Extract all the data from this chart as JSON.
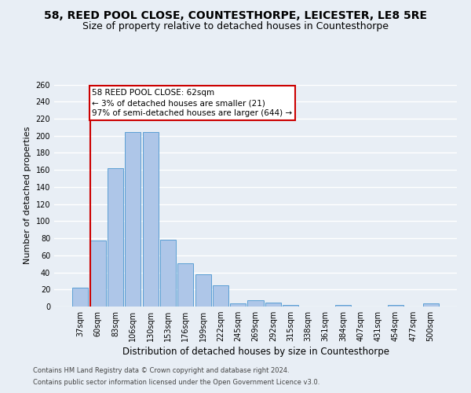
{
  "title1": "58, REED POOL CLOSE, COUNTESTHORPE, LEICESTER, LE8 5RE",
  "title2": "Size of property relative to detached houses in Countesthorpe",
  "xlabel": "Distribution of detached houses by size in Countesthorpe",
  "ylabel": "Number of detached properties",
  "categories": [
    "37sqm",
    "60sqm",
    "83sqm",
    "106sqm",
    "130sqm",
    "153sqm",
    "176sqm",
    "199sqm",
    "222sqm",
    "245sqm",
    "269sqm",
    "292sqm",
    "315sqm",
    "338sqm",
    "361sqm",
    "384sqm",
    "407sqm",
    "431sqm",
    "454sqm",
    "477sqm",
    "500sqm"
  ],
  "values": [
    22,
    77,
    162,
    204,
    204,
    78,
    51,
    38,
    25,
    4,
    7,
    5,
    2,
    0,
    0,
    2,
    0,
    0,
    2,
    0,
    4
  ],
  "bar_color": "#aec6e8",
  "bar_edge_color": "#5a9fd4",
  "subject_bar_index": 1,
  "subject_line_color": "#cc0000",
  "annotation_line1": "58 REED POOL CLOSE: 62sqm",
  "annotation_line2": "← 3% of detached houses are smaller (21)",
  "annotation_line3": "97% of semi-detached houses are larger (644) →",
  "annotation_box_facecolor": "#ffffff",
  "annotation_box_edgecolor": "#cc0000",
  "ylim": [
    0,
    260
  ],
  "yticks": [
    0,
    20,
    40,
    60,
    80,
    100,
    120,
    140,
    160,
    180,
    200,
    220,
    240,
    260
  ],
  "footer1": "Contains HM Land Registry data © Crown copyright and database right 2024.",
  "footer2": "Contains public sector information licensed under the Open Government Licence v3.0.",
  "bg_color": "#e8eef5",
  "title1_fontsize": 10,
  "title2_fontsize": 9,
  "axis_label_fontsize": 8,
  "tick_fontsize": 7,
  "footer_fontsize": 6,
  "annotation_fontsize": 7.5,
  "grid_color": "#ffffff"
}
